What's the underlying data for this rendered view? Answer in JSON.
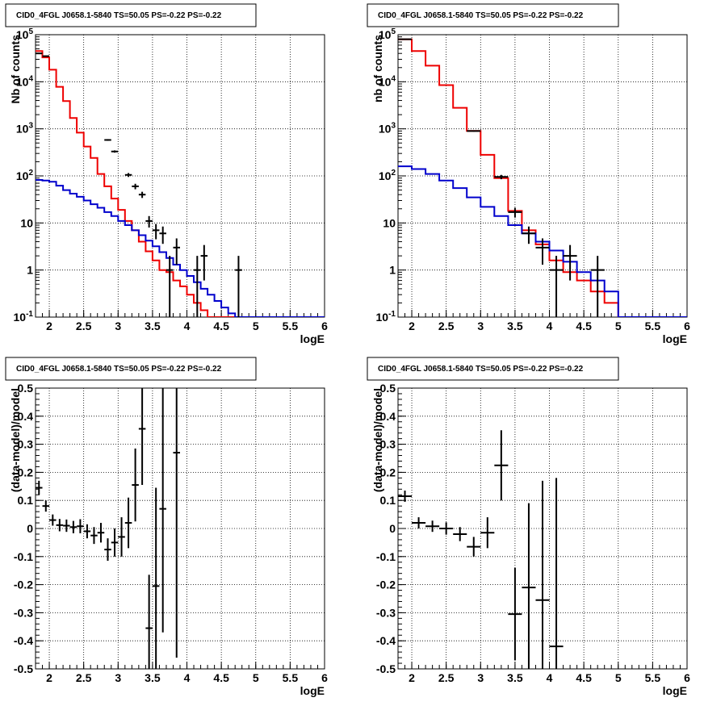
{
  "chart_data": [
    {
      "type": "step-histogram",
      "title": "CID0_4FGL J0658.1-5840 TS=50.05 PS=-0.22 PS=-0.22",
      "xlabel": "logE",
      "ylabel": "Nb of counts",
      "xlim": [
        1.8,
        6.0
      ],
      "ylim": [
        0.1,
        100000
      ],
      "yscale": "log",
      "grid": true,
      "x_ticks": [
        "2",
        "2.5",
        "3",
        "3.5",
        "4",
        "4.5",
        "5",
        "5.5",
        "6"
      ],
      "y_ticks": [
        "10^-1",
        "1",
        "10",
        "10^2",
        "10^3",
        "10^4",
        "10^5"
      ],
      "bin_edges": [
        1.8,
        1.9,
        2.0,
        2.1,
        2.2,
        2.3,
        2.4,
        2.5,
        2.6,
        2.7,
        2.8,
        2.9,
        3.0,
        3.1,
        3.2,
        3.3,
        3.4,
        3.5,
        3.6,
        3.7,
        3.8,
        3.9,
        4.0,
        4.1,
        4.2,
        4.3,
        4.4,
        4.5,
        4.6,
        4.7,
        4.8,
        4.9,
        5.0,
        5.1,
        5.2,
        5.3,
        5.4,
        5.5,
        5.6,
        5.7,
        5.8,
        5.9,
        6.0
      ],
      "series": [
        {
          "color": "#ee0000",
          "values": [
            45000,
            33000,
            18000,
            7800,
            3900,
            1700,
            830,
            420,
            240,
            110,
            60,
            33,
            19,
            11,
            7,
            4,
            2.5,
            1.6,
            1.0,
            0.9,
            0.6,
            0.45,
            0.3,
            0.2,
            0.14,
            0.1,
            0.1,
            0.1,
            0.1,
            0.1,
            0.1,
            0.1,
            0.1,
            0.1,
            0.1,
            0.1,
            0.1,
            0.1,
            0.1,
            0.1,
            0.1,
            0.1
          ]
        },
        {
          "color": "#0000cc",
          "values": [
            82,
            80,
            75,
            62,
            50,
            42,
            36,
            30,
            25,
            21,
            17,
            14,
            11,
            9,
            7,
            5.5,
            4.2,
            3.2,
            2.4,
            1.8,
            1.3,
            1.0,
            0.75,
            0.55,
            0.4,
            0.3,
            0.22,
            0.16,
            0.12,
            0.1,
            0.1,
            0.1,
            0.1,
            0.1,
            0.1,
            0.1,
            0.1,
            0.1,
            0.1,
            0.1,
            0.1,
            0.1
          ]
        }
      ],
      "data_points": [
        {
          "x": 1.85,
          "y": 40000,
          "ylo": 39800,
          "yhi": 40200
        },
        {
          "x": 1.95,
          "y": 35000,
          "ylo": 34800,
          "yhi": 35200
        },
        {
          "x": 2.85,
          "y": 580,
          "ylo": 556,
          "yhi": 604
        },
        {
          "x": 2.95,
          "y": 330,
          "ylo": 312,
          "yhi": 348
        },
        {
          "x": 3.15,
          "y": 105,
          "ylo": 95,
          "yhi": 115
        },
        {
          "x": 3.25,
          "y": 60,
          "ylo": 52,
          "yhi": 68
        },
        {
          "x": 3.35,
          "y": 40,
          "ylo": 34,
          "yhi": 46
        },
        {
          "x": 3.45,
          "y": 11,
          "ylo": 8,
          "yhi": 14
        },
        {
          "x": 3.55,
          "y": 7,
          "ylo": 4.5,
          "yhi": 9.5
        },
        {
          "x": 3.65,
          "y": 6,
          "ylo": 3.6,
          "yhi": 8.4
        },
        {
          "x": 3.75,
          "y": 1,
          "ylo": 0.1,
          "yhi": 2.0
        },
        {
          "x": 3.85,
          "y": 3,
          "ylo": 1.3,
          "yhi": 4.7
        },
        {
          "x": 4.15,
          "y": 1,
          "ylo": 0.1,
          "yhi": 2.0
        },
        {
          "x": 4.25,
          "y": 2,
          "ylo": 0.6,
          "yhi": 3.4
        },
        {
          "x": 4.75,
          "y": 1,
          "ylo": 0.1,
          "yhi": 2.0
        }
      ]
    },
    {
      "type": "step-histogram",
      "title": "CID0_4FGL J0658.1-5840 TS=50.05 PS=-0.22 PS=-0.22",
      "xlabel": "logE",
      "ylabel": "nb of counts",
      "xlim": [
        1.8,
        6.0
      ],
      "ylim": [
        0.1,
        100000
      ],
      "yscale": "log",
      "grid": true,
      "x_ticks": [
        "2",
        "2.5",
        "3",
        "3.5",
        "4",
        "4.5",
        "5",
        "5.5",
        "6"
      ],
      "y_ticks": [
        "10^-1",
        "1",
        "10",
        "10^2",
        "10^3",
        "10^4",
        "10^5"
      ],
      "bin_edges": [
        1.8,
        2.0,
        2.2,
        2.4,
        2.6,
        2.8,
        3.0,
        3.2,
        3.4,
        3.6,
        3.8,
        4.0,
        4.2,
        4.4,
        4.6,
        4.8,
        5.0,
        5.2,
        5.4,
        5.6,
        5.8,
        6.0
      ],
      "series": [
        {
          "color": "#ee0000",
          "values": [
            80000,
            45000,
            22000,
            8500,
            2800,
            900,
            280,
            90,
            18,
            7,
            3.5,
            1.6,
            0.9,
            0.6,
            0.35,
            0.2,
            0.1,
            0.1,
            0.1,
            0.1,
            0.1
          ]
        },
        {
          "color": "#0000cc",
          "values": [
            160,
            140,
            110,
            80,
            55,
            35,
            22,
            14,
            9,
            6,
            4,
            2.6,
            1.5,
            0.9,
            0.6,
            0.35,
            0.1,
            0.1,
            0.1,
            0.1,
            0.1
          ]
        }
      ],
      "data_points": [
        {
          "x": 1.9,
          "y": 80000,
          "ylo": 79700,
          "yhi": 80300
        },
        {
          "x": 2.9,
          "y": 900,
          "ylo": 870,
          "yhi": 930
        },
        {
          "x": 3.3,
          "y": 95,
          "ylo": 85,
          "yhi": 105
        },
        {
          "x": 3.5,
          "y": 17,
          "ylo": 13,
          "yhi": 21
        },
        {
          "x": 3.7,
          "y": 6,
          "ylo": 3.6,
          "yhi": 8.4
        },
        {
          "x": 3.9,
          "y": 3,
          "ylo": 1.3,
          "yhi": 4.7
        },
        {
          "x": 4.1,
          "y": 1,
          "ylo": 0.1,
          "yhi": 2.0
        },
        {
          "x": 4.3,
          "y": 2,
          "ylo": 0.6,
          "yhi": 3.4
        },
        {
          "x": 4.7,
          "y": 1,
          "ylo": 0.1,
          "yhi": 2.0
        }
      ]
    },
    {
      "type": "scatter-errorbars",
      "title": "CID0_4FGL J0658.1-5840 TS=50.05 PS=-0.22 PS=-0.22",
      "xlabel": "logE",
      "ylabel": "(data-model)/model",
      "xlim": [
        1.8,
        6.0
      ],
      "ylim": [
        -0.5,
        0.5
      ],
      "grid": true,
      "x_ticks": [
        "2",
        "2.5",
        "3",
        "3.5",
        "4",
        "4.5",
        "5",
        "5.5",
        "6"
      ],
      "y_ticks": [
        "-0.5",
        "-0.4",
        "-0.3",
        "-0.2",
        "-0.1",
        "0",
        "0.1",
        "0.2",
        "0.3",
        "0.4",
        "0.5"
      ],
      "bin_width": 0.1,
      "points": [
        {
          "x": 1.85,
          "y": 0.145,
          "err": 0.025
        },
        {
          "x": 1.95,
          "y": 0.08,
          "err": 0.02
        },
        {
          "x": 2.05,
          "y": 0.03,
          "err": 0.02
        },
        {
          "x": 2.15,
          "y": 0.012,
          "err": 0.022
        },
        {
          "x": 2.25,
          "y": 0.01,
          "err": 0.022
        },
        {
          "x": 2.35,
          "y": 0.005,
          "err": 0.022
        },
        {
          "x": 2.45,
          "y": 0.008,
          "err": 0.025
        },
        {
          "x": 2.55,
          "y": -0.01,
          "err": 0.025
        },
        {
          "x": 2.65,
          "y": -0.025,
          "err": 0.03
        },
        {
          "x": 2.75,
          "y": -0.015,
          "err": 0.035
        },
        {
          "x": 2.85,
          "y": -0.075,
          "err": 0.04
        },
        {
          "x": 2.95,
          "y": -0.05,
          "err": 0.05
        },
        {
          "x": 3.05,
          "y": -0.03,
          "err": 0.07
        },
        {
          "x": 3.15,
          "y": 0.02,
          "err": 0.09
        },
        {
          "x": 3.25,
          "y": 0.155,
          "err": 0.13
        },
        {
          "x": 3.35,
          "y": 0.355,
          "err": 0.2
        },
        {
          "x": 3.45,
          "y": -0.355,
          "err": 0.19
        },
        {
          "x": 3.55,
          "y": -0.205,
          "err": 0.35
        },
        {
          "x": 3.65,
          "y": 0.07,
          "err": 0.44
        },
        {
          "x": 3.85,
          "y": 0.27,
          "err": 0.73
        }
      ]
    },
    {
      "type": "scatter-errorbars",
      "title": "CID0_4FGL J0658.1-5840 TS=50.05 PS=-0.22 PS=-0.22",
      "xlabel": "logE",
      "ylabel": "(data-model)/model",
      "xlim": [
        1.8,
        6.0
      ],
      "ylim": [
        -0.5,
        0.5
      ],
      "grid": true,
      "x_ticks": [
        "2",
        "2.5",
        "3",
        "3.5",
        "4",
        "4.5",
        "5",
        "5.5",
        "6"
      ],
      "y_ticks": [
        "-0.5",
        "-0.4",
        "-0.3",
        "-0.2",
        "-0.1",
        "0",
        "0.1",
        "0.2",
        "0.3",
        "0.4",
        "0.5"
      ],
      "bin_width": 0.2,
      "points": [
        {
          "x": 1.9,
          "y": 0.115,
          "err": 0.02
        },
        {
          "x": 2.1,
          "y": 0.02,
          "err": 0.02
        },
        {
          "x": 2.3,
          "y": 0.008,
          "err": 0.02
        },
        {
          "x": 2.5,
          "y": 0.0,
          "err": 0.022
        },
        {
          "x": 2.7,
          "y": -0.02,
          "err": 0.025
        },
        {
          "x": 2.9,
          "y": -0.065,
          "err": 0.035
        },
        {
          "x": 3.1,
          "y": -0.015,
          "err": 0.055
        },
        {
          "x": 3.3,
          "y": 0.225,
          "err": 0.125
        },
        {
          "x": 3.5,
          "y": -0.305,
          "err": 0.165
        },
        {
          "x": 3.7,
          "y": -0.21,
          "err": 0.3
        },
        {
          "x": 3.9,
          "y": -0.255,
          "err": 0.425
        },
        {
          "x": 4.1,
          "y": -0.42,
          "err": 0.6
        }
      ]
    }
  ]
}
